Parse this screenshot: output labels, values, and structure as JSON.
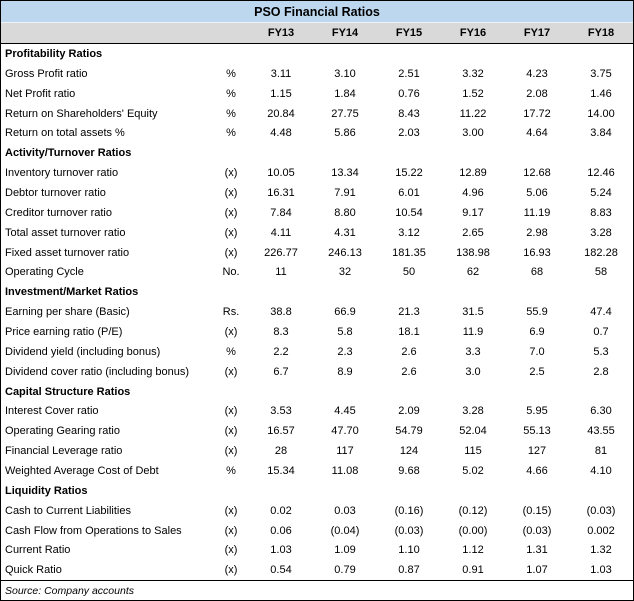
{
  "colors": {
    "title_bar_bg": "#BDD7EE",
    "column_header_bg": "#D9D9D9",
    "border": "#000000",
    "text": "#000000"
  },
  "source_note": "Source: Company accounts",
  "chart_data": {
    "type": "table",
    "title": "PSO Financial Ratios",
    "columns": [
      "FY13",
      "FY14",
      "FY15",
      "FY16",
      "FY17",
      "FY18"
    ],
    "sections": [
      {
        "header": "Profitability Ratios",
        "rows": [
          {
            "label": "Gross Profit ratio",
            "unit": "%",
            "values": [
              "3.11",
              "3.10",
              "2.51",
              "3.32",
              "4.23",
              "3.75"
            ]
          },
          {
            "label": "Net Profit ratio",
            "unit": "%",
            "values": [
              "1.15",
              "1.84",
              "0.76",
              "1.52",
              "2.08",
              "1.46"
            ]
          },
          {
            "label": "Return on Shareholders' Equity",
            "unit": "%",
            "values": [
              "20.84",
              "27.75",
              "8.43",
              "11.22",
              "17.72",
              "14.00"
            ]
          },
          {
            "label": "Return on total assets %",
            "unit": "%",
            "values": [
              "4.48",
              "5.86",
              "2.03",
              "3.00",
              "4.64",
              "3.84"
            ]
          }
        ]
      },
      {
        "header": "Activity/Turnover Ratios",
        "rows": [
          {
            "label": "Inventory turnover ratio",
            "unit": "(x)",
            "values": [
              "10.05",
              "13.34",
              "15.22",
              "12.89",
              "12.68",
              "12.46"
            ]
          },
          {
            "label": "Debtor turnover ratio",
            "unit": "(x)",
            "values": [
              "16.31",
              "7.91",
              "6.01",
              "4.96",
              "5.06",
              "5.24"
            ]
          },
          {
            "label": "Creditor turnover ratio",
            "unit": "(x)",
            "values": [
              "7.84",
              "8.80",
              "10.54",
              "9.17",
              "11.19",
              "8.83"
            ]
          },
          {
            "label": "Total asset turnover ratio",
            "unit": "(x)",
            "values": [
              "4.11",
              "4.31",
              "3.12",
              "2.65",
              "2.98",
              "3.28"
            ]
          },
          {
            "label": "Fixed asset turnover ratio",
            "unit": "(x)",
            "values": [
              "226.77",
              "246.13",
              "181.35",
              "138.98",
              "16.93",
              "182.28"
            ]
          },
          {
            "label": "Operating Cycle",
            "unit": "No.",
            "values": [
              "11",
              "32",
              "50",
              "62",
              "68",
              "58"
            ]
          }
        ]
      },
      {
        "header": "Investment/Market Ratios",
        "rows": [
          {
            "label": "Earning per share (Basic)",
            "unit": "Rs.",
            "values": [
              "38.8",
              "66.9",
              "21.3",
              "31.5",
              "55.9",
              "47.4"
            ]
          },
          {
            "label": "Price earning ratio (P/E)",
            "unit": "(x)",
            "values": [
              "8.3",
              "5.8",
              "18.1",
              "11.9",
              "6.9",
              "0.7"
            ]
          },
          {
            "label": "Dividend yield (including bonus)",
            "unit": "%",
            "values": [
              "2.2",
              "2.3",
              "2.6",
              "3.3",
              "7.0",
              "5.3"
            ]
          },
          {
            "label": "Dividend cover ratio (including bonus)",
            "unit": "(x)",
            "values": [
              "6.7",
              "8.9",
              "2.6",
              "3.0",
              "2.5",
              "2.8"
            ]
          }
        ]
      },
      {
        "header": "Capital Structure Ratios",
        "rows": [
          {
            "label": "Interest Cover ratio",
            "unit": "(x)",
            "values": [
              "3.53",
              "4.45",
              "2.09",
              "3.28",
              "5.95",
              "6.30"
            ]
          },
          {
            "label": "Operating Gearing ratio",
            "unit": "(x)",
            "values": [
              "16.57",
              "47.70",
              "54.79",
              "52.04",
              "55.13",
              "43.55"
            ]
          },
          {
            "label": "Financial Leverage ratio",
            "unit": "(x)",
            "values": [
              "28",
              "117",
              "124",
              "115",
              "127",
              "81"
            ]
          },
          {
            "label": "Weighted Average Cost of Debt",
            "unit": "%",
            "values": [
              "15.34",
              "11.08",
              "9.68",
              "5.02",
              "4.66",
              "4.10"
            ]
          }
        ]
      },
      {
        "header": "Liquidity Ratios",
        "rows": [
          {
            "label": "Cash to Current Liabilities",
            "unit": "(x)",
            "values": [
              "0.02",
              "0.03",
              "(0.16)",
              "(0.12)",
              "(0.15)",
              "(0.03)"
            ]
          },
          {
            "label": "Cash Flow from Operations to Sales",
            "unit": "(x)",
            "values": [
              "0.06",
              "(0.04)",
              "(0.03)",
              "(0.00)",
              "(0.03)",
              "0.002"
            ]
          },
          {
            "label": "Current Ratio",
            "unit": "(x)",
            "values": [
              "1.03",
              "1.09",
              "1.10",
              "1.12",
              "1.31",
              "1.32"
            ]
          },
          {
            "label": "Quick Ratio",
            "unit": "(x)",
            "values": [
              "0.54",
              "0.79",
              "0.87",
              "0.91",
              "1.07",
              "1.03"
            ]
          }
        ]
      }
    ]
  }
}
